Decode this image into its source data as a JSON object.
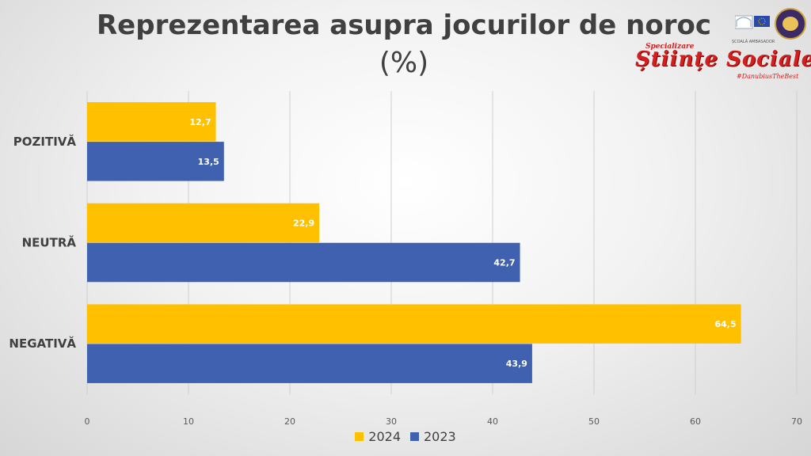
{
  "chart_data": {
    "type": "bar",
    "orientation": "horizontal",
    "title": "Reprezentarea asupra jocurilor de noroc",
    "subtitle": "(%)",
    "categories": [
      "POZITIVĂ",
      "NEUTRĂ",
      "NEGATIVĂ"
    ],
    "series": [
      {
        "name": "2024",
        "color": "#ffc000",
        "values": [
          12.7,
          22.9,
          64.5
        ],
        "labels": [
          "12,7",
          "22,9",
          "64,5"
        ]
      },
      {
        "name": "2023",
        "color": "#4060b0",
        "values": [
          13.5,
          42.7,
          43.9
        ],
        "labels": [
          "13,5",
          "42,7",
          "43,9"
        ]
      }
    ],
    "xlim": [
      0,
      70
    ],
    "xticks": [
      0,
      10,
      20,
      30,
      40,
      50,
      60,
      70
    ],
    "grid": true,
    "legend_position": "bottom"
  },
  "branding": {
    "ep_caption": "ȘCOALĂ AMBASADOR",
    "wordmark_kicker": "Specializare",
    "wordmark": "Științe Sociale",
    "hashtag": "#DanubiusTheBest"
  }
}
